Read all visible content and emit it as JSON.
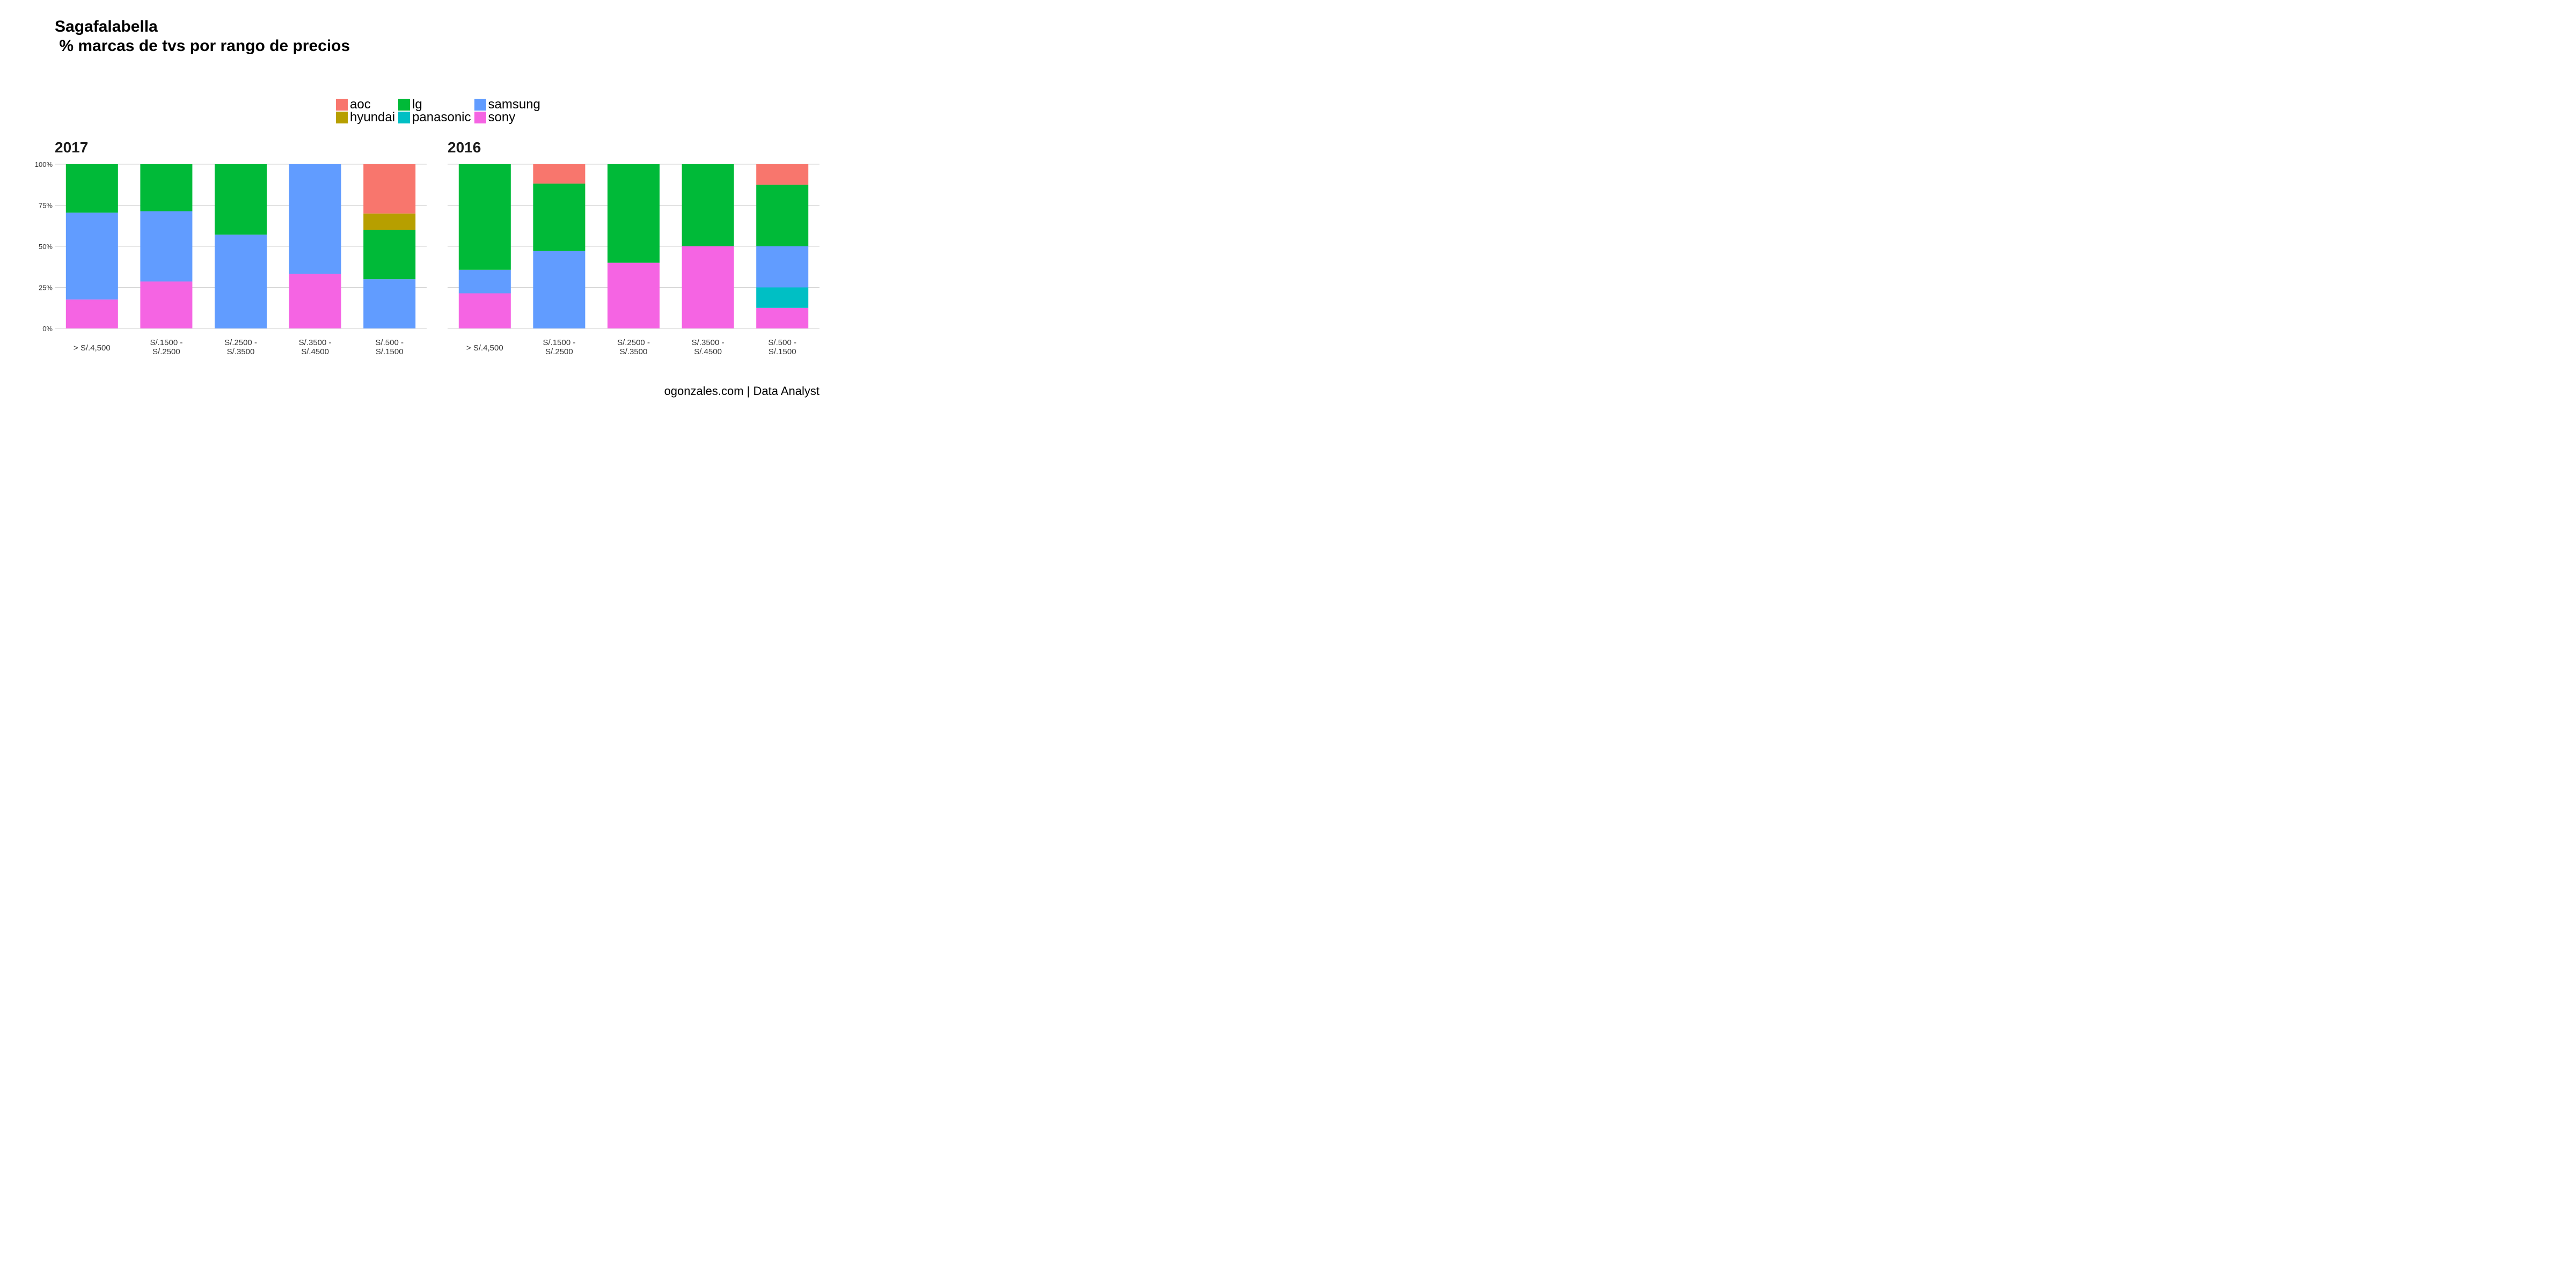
{
  "title": {
    "line1": "Sagafalabella",
    "line2": " % marcas de tvs por rango de precios"
  },
  "caption": "ogonzales.com | Data Analyst",
  "legend": [
    {
      "key": "aoc",
      "label": "aoc",
      "color": "#F8766D"
    },
    {
      "key": "lg",
      "label": "lg",
      "color": "#00BA38"
    },
    {
      "key": "samsung",
      "label": "samsung",
      "color": "#619CFF"
    },
    {
      "key": "hyundai",
      "label": "hyundai",
      "color": "#B79F00"
    },
    {
      "key": "panasonic",
      "label": "panasonic",
      "color": "#00BFC4"
    },
    {
      "key": "sony",
      "label": "sony",
      "color": "#F564E3"
    }
  ],
  "chart_data": [
    {
      "type": "bar",
      "stacked": true,
      "title": "2017",
      "categories": [
        "> S/.4,500",
        "S/.1500 - S/.2500",
        "S/.2500 - S/.3500",
        "S/.3500 - S/.4500",
        "S/.500 - S/.1500"
      ],
      "ylim": [
        0,
        1
      ],
      "yticks": [
        "0%",
        "25%",
        "50%",
        "75%",
        "100%"
      ],
      "grid": "horizontal",
      "stack_order_bottom_to_top": [
        "sony",
        "panasonic",
        "samsung",
        "lg",
        "hyundai",
        "aoc"
      ],
      "series": [
        {
          "name": "sony",
          "values": [
            0.176,
            0.286,
            0,
            0.333,
            0
          ]
        },
        {
          "name": "panasonic",
          "values": [
            0,
            0,
            0,
            0,
            0
          ]
        },
        {
          "name": "samsung",
          "values": [
            0.529,
            0.428,
            0.571,
            0.667,
            0.3
          ]
        },
        {
          "name": "lg",
          "values": [
            0.295,
            0.286,
            0.429,
            0,
            0.3
          ]
        },
        {
          "name": "hyundai",
          "values": [
            0,
            0,
            0,
            0,
            0.1
          ]
        },
        {
          "name": "aoc",
          "values": [
            0,
            0,
            0,
            0,
            0.3
          ]
        }
      ]
    },
    {
      "type": "bar",
      "stacked": true,
      "title": "2016",
      "categories": [
        "> S/.4,500",
        "S/.1500 - S/.2500",
        "S/.2500 - S/.3500",
        "S/.3500 - S/.4500",
        "S/.500 - S/.1500"
      ],
      "ylim": [
        0,
        1
      ],
      "yticks": [
        "0%",
        "25%",
        "50%",
        "75%",
        "100%"
      ],
      "grid": "horizontal",
      "stack_order_bottom_to_top": [
        "sony",
        "panasonic",
        "samsung",
        "lg",
        "hyundai",
        "aoc"
      ],
      "series": [
        {
          "name": "sony",
          "values": [
            0.214,
            0,
            0.4,
            0.5,
            0.125
          ]
        },
        {
          "name": "panasonic",
          "values": [
            0,
            0,
            0,
            0,
            0.125
          ]
        },
        {
          "name": "samsung",
          "values": [
            0.143,
            0.471,
            0,
            0,
            0.25
          ]
        },
        {
          "name": "lg",
          "values": [
            0.643,
            0.411,
            0.6,
            0.5,
            0.375
          ]
        },
        {
          "name": "hyundai",
          "values": [
            0,
            0,
            0,
            0,
            0
          ]
        },
        {
          "name": "aoc",
          "values": [
            0,
            0.118,
            0,
            0,
            0.125
          ]
        }
      ]
    }
  ]
}
